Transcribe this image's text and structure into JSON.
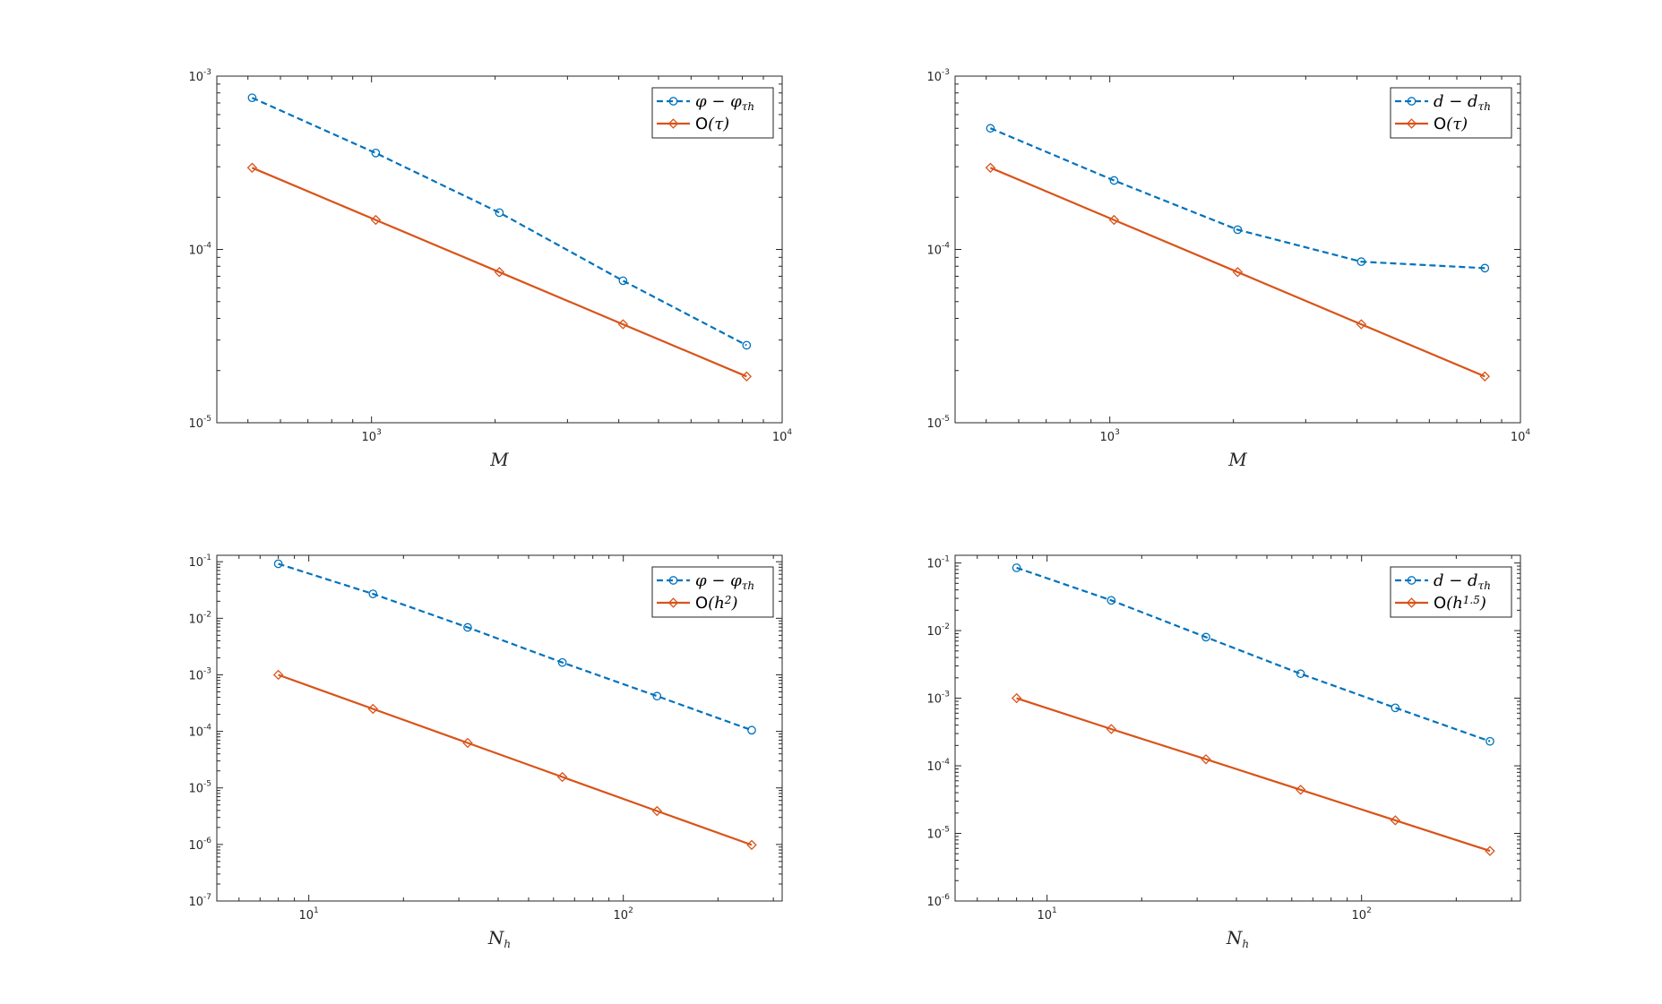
{
  "chart_data": [
    {
      "type": "line",
      "xscale": "log",
      "yscale": "log",
      "xlabel": "M",
      "xlim": [
        420,
        10000
      ],
      "ylim": [
        1e-05,
        0.001
      ],
      "xticks": [
        {
          "value": 1000,
          "base": "10",
          "exp": "3"
        },
        {
          "value": 10000,
          "base": "10",
          "exp": "4"
        }
      ],
      "yticks": [
        {
          "value": 1e-05,
          "base": "10",
          "exp": "-5"
        },
        {
          "value": 0.0001,
          "base": "10",
          "exp": "-4"
        },
        {
          "value": 0.001,
          "base": "10",
          "exp": "-3"
        }
      ],
      "legend_position": "top-right",
      "series": [
        {
          "name": "φ − φ_τh",
          "color": "#0072BD",
          "style": "dashed",
          "marker": "circle",
          "x": [
            512,
            1024,
            2048,
            4096,
            8192
          ],
          "y": [
            0.00075,
            0.00036,
            0.000163,
            6.6e-05,
            2.8e-05
          ]
        },
        {
          "name": "O(τ)",
          "color": "#D95319",
          "style": "solid",
          "marker": "diamond",
          "x": [
            512,
            1024,
            2048,
            4096,
            8192
          ],
          "y": [
            0.000296,
            0.000148,
            7.4e-05,
            3.7e-05,
            1.85e-05
          ]
        }
      ]
    },
    {
      "type": "line",
      "xscale": "log",
      "yscale": "log",
      "xlabel": "M",
      "xlim": [
        420,
        10000
      ],
      "ylim": [
        1e-05,
        0.001
      ],
      "xticks": [
        {
          "value": 1000,
          "base": "10",
          "exp": "3"
        },
        {
          "value": 10000,
          "base": "10",
          "exp": "4"
        }
      ],
      "yticks": [
        {
          "value": 1e-05,
          "base": "10",
          "exp": "-5"
        },
        {
          "value": 0.0001,
          "base": "10",
          "exp": "-4"
        },
        {
          "value": 0.001,
          "base": "10",
          "exp": "-3"
        }
      ],
      "legend_position": "top-right",
      "series": [
        {
          "name": "d − d_τh",
          "color": "#0072BD",
          "style": "dashed",
          "marker": "circle",
          "x": [
            512,
            1024,
            2048,
            4096,
            8192
          ],
          "y": [
            0.0005,
            0.00025,
            0.00013,
            8.5e-05,
            7.8e-05
          ]
        },
        {
          "name": "O(τ)",
          "color": "#D95319",
          "style": "solid",
          "marker": "diamond",
          "x": [
            512,
            1024,
            2048,
            4096,
            8192
          ],
          "y": [
            0.000296,
            0.000148,
            7.4e-05,
            3.7e-05,
            1.85e-05
          ]
        }
      ]
    },
    {
      "type": "line",
      "xscale": "log",
      "yscale": "log",
      "xlabel": "N_h",
      "xlim": [
        5.1,
        320
      ],
      "ylim": [
        1e-07,
        0.13
      ],
      "xticks": [
        {
          "value": 10,
          "base": "10",
          "exp": "1"
        },
        {
          "value": 100,
          "base": "10",
          "exp": "2"
        }
      ],
      "yticks": [
        {
          "value": 1e-07,
          "base": "10",
          "exp": "-7"
        },
        {
          "value": 1e-06,
          "base": "10",
          "exp": "-6"
        },
        {
          "value": 1e-05,
          "base": "10",
          "exp": "-5"
        },
        {
          "value": 0.0001,
          "base": "10",
          "exp": "-4"
        },
        {
          "value": 0.001,
          "base": "10",
          "exp": "-3"
        },
        {
          "value": 0.01,
          "base": "10",
          "exp": "-2"
        },
        {
          "value": 0.1,
          "base": "10",
          "exp": "-1"
        }
      ],
      "legend_position": "top-right",
      "series": [
        {
          "name": "φ − φ_τh",
          "color": "#0072BD",
          "style": "dashed",
          "marker": "circle",
          "x": [
            8,
            16,
            32,
            64,
            128,
            256
          ],
          "y": [
            0.092,
            0.027,
            0.0069,
            0.00165,
            0.00042,
            0.000105
          ]
        },
        {
          "name": "O(h^2)",
          "color": "#D95319",
          "style": "solid",
          "marker": "diamond",
          "x": [
            8,
            16,
            32,
            64,
            128,
            256
          ],
          "y": [
            0.001,
            0.00025,
            6.25e-05,
            1.56e-05,
            3.9e-06,
            9.8e-07
          ]
        }
      ]
    },
    {
      "type": "line",
      "xscale": "log",
      "yscale": "log",
      "xlabel": "N_h",
      "xlim": [
        5.1,
        320
      ],
      "ylim": [
        1e-06,
        0.13
      ],
      "xticks": [
        {
          "value": 10,
          "base": "10",
          "exp": "1"
        },
        {
          "value": 100,
          "base": "10",
          "exp": "2"
        }
      ],
      "yticks": [
        {
          "value": 1e-06,
          "base": "10",
          "exp": "-6"
        },
        {
          "value": 1e-05,
          "base": "10",
          "exp": "-5"
        },
        {
          "value": 0.0001,
          "base": "10",
          "exp": "-4"
        },
        {
          "value": 0.001,
          "base": "10",
          "exp": "-3"
        },
        {
          "value": 0.01,
          "base": "10",
          "exp": "-2"
        },
        {
          "value": 0.1,
          "base": "10",
          "exp": "-1"
        }
      ],
      "legend_position": "top-right",
      "series": [
        {
          "name": "d − d_τh",
          "color": "#0072BD",
          "style": "dashed",
          "marker": "circle",
          "x": [
            8,
            16,
            32,
            64,
            128,
            256
          ],
          "y": [
            0.085,
            0.028,
            0.008,
            0.0023,
            0.00072,
            0.00023
          ]
        },
        {
          "name": "O(h^1.5)",
          "color": "#D95319",
          "style": "solid",
          "marker": "diamond",
          "x": [
            8,
            16,
            32,
            64,
            128,
            256
          ],
          "y": [
            0.001,
            0.00035,
            0.000125,
            4.42e-05,
            1.56e-05,
            5.5e-06
          ]
        }
      ]
    }
  ]
}
